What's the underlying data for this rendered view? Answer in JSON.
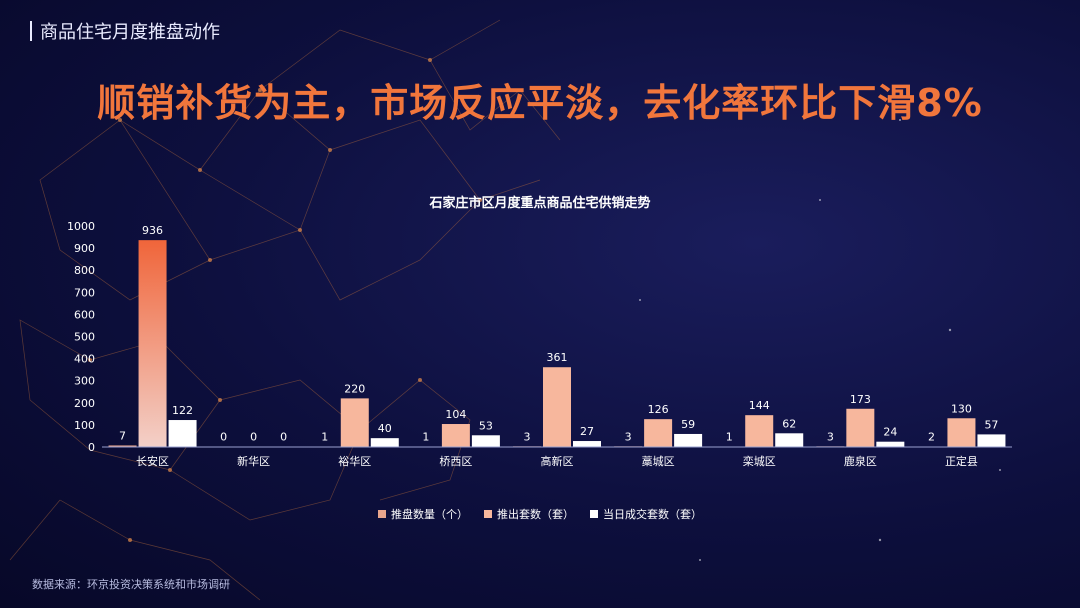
{
  "header": {
    "section_title": "商品住宅月度推盘动作"
  },
  "headline": "顺销补货为主，市场反应平淡，去化率环比下滑8%",
  "footer": {
    "source": "数据来源：环京投资决策系统和市场调研"
  },
  "colors": {
    "series1": "#e8a58c",
    "series2": "#f7b79d",
    "series3": "#ffffff",
    "accent": "#f1763c",
    "highlight_top": "#f0653a",
    "highlight_bottom": "#f3d0c8"
  },
  "chart_data": {
    "type": "bar",
    "title": "石家庄市区月度重点商品住宅供销走势",
    "categories": [
      "长安区",
      "新华区",
      "裕华区",
      "桥西区",
      "高新区",
      "藁城区",
      "栾城区",
      "鹿泉区",
      "正定县"
    ],
    "series": [
      {
        "name": "推盘数量（个）",
        "values": [
          7,
          0,
          1,
          1,
          3,
          3,
          1,
          3,
          2
        ]
      },
      {
        "name": "推出套数（套）",
        "values": [
          936,
          0,
          220,
          104,
          361,
          126,
          144,
          173,
          130
        ]
      },
      {
        "name": "当日成交套数（套）",
        "values": [
          122,
          0,
          40,
          53,
          27,
          59,
          62,
          24,
          57
        ]
      }
    ],
    "ylim": [
      0,
      1000
    ],
    "yticks": [
      "0",
      "100",
      "200",
      "300",
      "400",
      "500",
      "600",
      "700",
      "800",
      "900",
      "1000"
    ],
    "legend_position": "bottom",
    "grid": false
  }
}
